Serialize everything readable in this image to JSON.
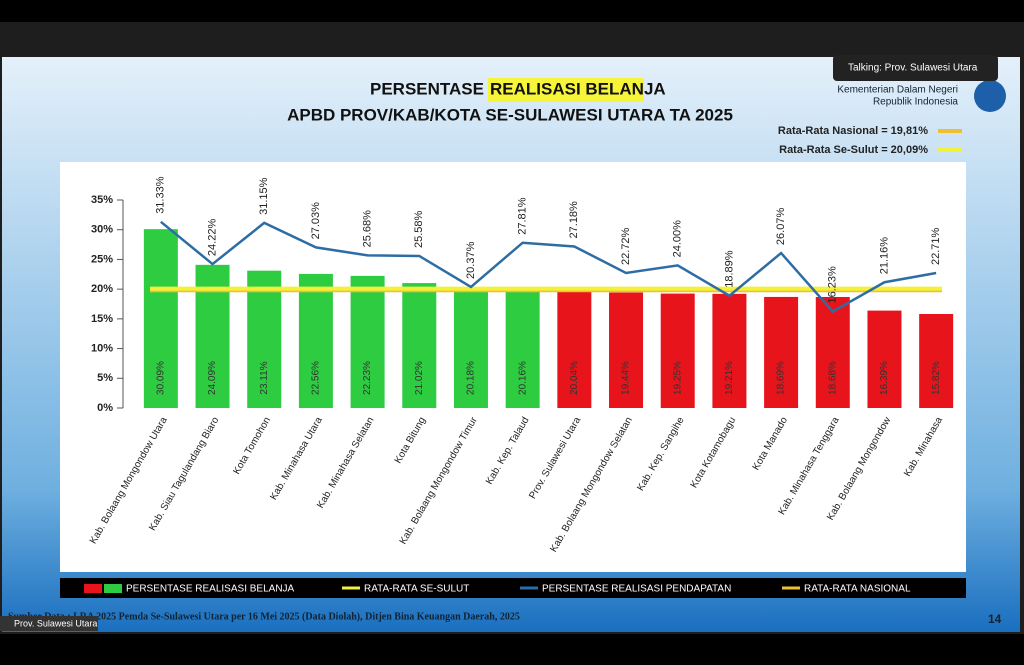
{
  "screen": {
    "talking": "Talking: Prov. Sulawesi Utara",
    "participant": "Prov. Sulawesi Utara",
    "org": [
      "Kementerian Dalam Negeri",
      "Republik Indonesia"
    ],
    "source": "Sumber Data : LRA 2025 Pemda Se-Sulawesi Utara per 16 Mei 2025 (Data Diolah), Ditjen Bina Keuangan Daerah, 2025",
    "page": "14"
  },
  "chart_data": {
    "type": "bar",
    "title": [
      "PERSENTASE",
      "REALISASI BELANJA"
    ],
    "subtitle": "APBD PROV/KAB/KOTA SE-SULAWESI UTARA TA 2025",
    "categories": [
      "Kab. Bolaang Mongondow Utara",
      "Kab. Siau Tagulandang Biaro",
      "Kota Tomohon",
      "Kab. Minahasa Utara",
      "Kab. Minahasa Selatan",
      "Kota Bitung",
      "Kab. Bolaang Mongondow Timur",
      "Kab. Kep. Talaud",
      "Prov. Sulawesi Utara",
      "Kab. Bolaang Mongondow Selatan",
      "Kab. Kep. Sangihe",
      "Kota Kotamobagu",
      "Kota Manado",
      "Kab. Minahasa Tenggara",
      "Kab. Bolaang Mongondow",
      "Kab. Minahasa"
    ],
    "series": [
      {
        "name": "PERSENTASE REALISASI BELANJA",
        "type": "bar",
        "colors": [
          "#2ecc40",
          "#2ecc40",
          "#2ecc40",
          "#2ecc40",
          "#2ecc40",
          "#2ecc40",
          "#2ecc40",
          "#2ecc40",
          "#e8141b",
          "#e8141b",
          "#e8141b",
          "#e8141b",
          "#e8141b",
          "#e8141b",
          "#e8141b",
          "#e8141b"
        ],
        "values": [
          30.09,
          24.09,
          23.11,
          22.56,
          22.23,
          21.02,
          20.18,
          20.16,
          20.04,
          19.44,
          19.25,
          19.21,
          18.69,
          18.68,
          16.39,
          15.82
        ],
        "value_labels": [
          "30.09%",
          "24.09%",
          "23.11%",
          "22.56%",
          "22.23%",
          "21.02%",
          "20.18%",
          "20.16%",
          "20.04%",
          "19.44%",
          "19.25%",
          "19.21%",
          "18.69%",
          "18.68%",
          "16.39%",
          "15.82%"
        ]
      },
      {
        "name": "PERSENTASE REALISASI PENDAPATAN",
        "type": "line",
        "color": "#2e6da4",
        "values": [
          31.33,
          24.22,
          31.15,
          27.03,
          25.68,
          25.58,
          20.37,
          27.81,
          27.18,
          22.72,
          24.0,
          18.89,
          26.07,
          16.23,
          21.16,
          22.71
        ],
        "value_labels": [
          "31.33%",
          "24.22%",
          "31.15%",
          "27.03%",
          "25.68%",
          "25.58%",
          "20.37%",
          "27.81%",
          "27.18%",
          "22.72%",
          "24.00%",
          "18.89%",
          "26.07%",
          "16.23%",
          "21.16%",
          "22.71%"
        ]
      }
    ],
    "reference_lines": [
      {
        "name": "RATA-RATA SE-SULUT",
        "label": "Rata-Rata Se-Sulut = 20,09%",
        "value": 20.09,
        "color": "#f2f23a"
      },
      {
        "name": "RATA-RATA NASIONAL",
        "label": "Rata-Rata Nasional = 19,81%",
        "value": 19.81,
        "color": "#f0c030"
      }
    ],
    "ylim": [
      0,
      35
    ],
    "yticks": [
      {
        "value": 0,
        "label": "0%"
      },
      {
        "value": 5,
        "label": "5%"
      },
      {
        "value": 10,
        "label": "10%"
      },
      {
        "value": 15,
        "label": "15%"
      },
      {
        "value": 20,
        "label": "20%"
      },
      {
        "value": 25,
        "label": "25%"
      },
      {
        "value": 30,
        "label": "30%"
      },
      {
        "value": 35,
        "label": "35%"
      }
    ]
  }
}
